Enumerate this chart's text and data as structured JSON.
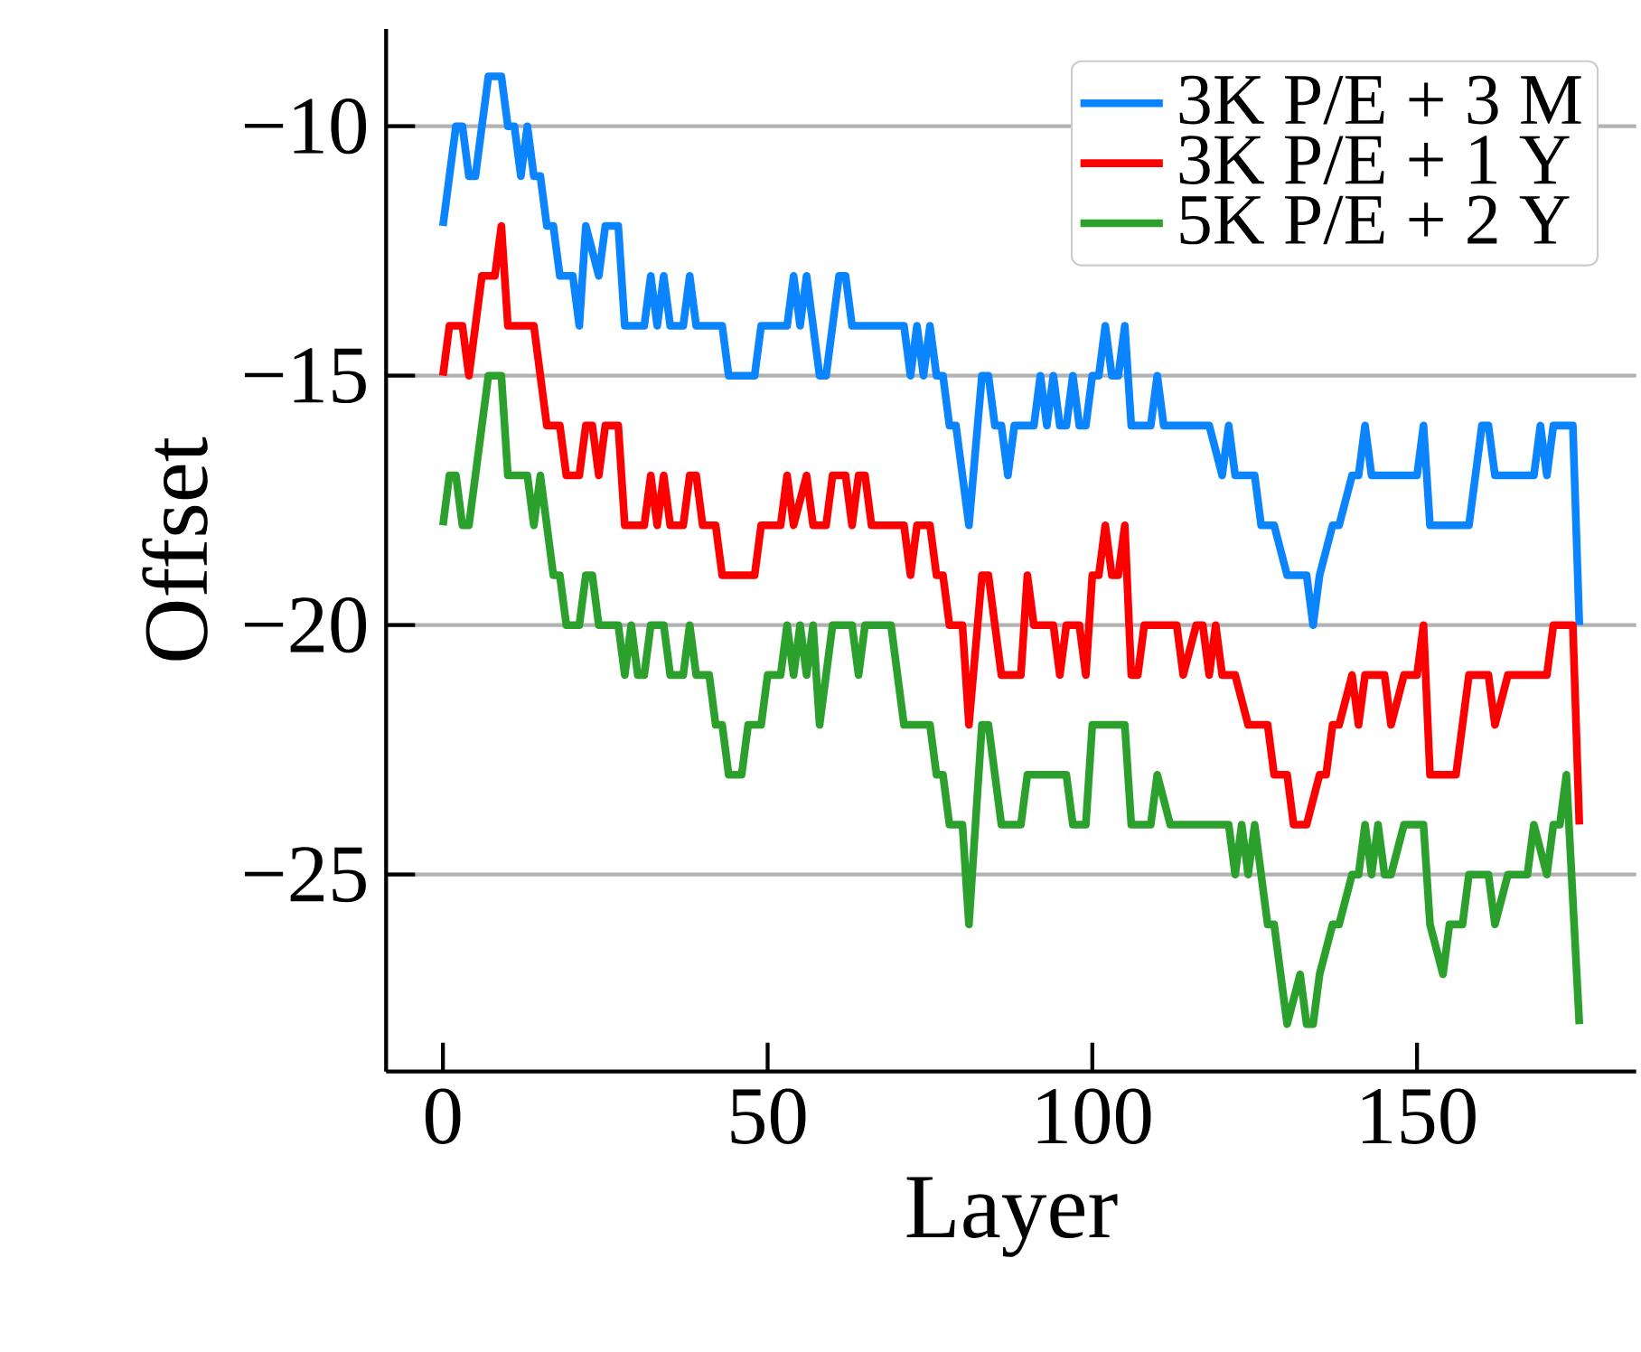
{
  "chart_data": {
    "type": "line",
    "xlabel": "Layer",
    "ylabel": "Offset",
    "xlim": [
      -8.75,
      183.75
    ],
    "ylim": [
      -28.95,
      -8.05
    ],
    "xticks": [
      0,
      50,
      100,
      150
    ],
    "yticks": [
      {
        "value": -10,
        "label": "−10"
      },
      {
        "value": -15,
        "label": "−15"
      },
      {
        "value": -20,
        "label": "−20"
      },
      {
        "value": -25,
        "label": "−25"
      }
    ],
    "grid": "y",
    "legend": "top right",
    "series": [
      {
        "name": "3K P/E + 3 M",
        "color": "#0a84ff",
        "x": [
          0,
          2,
          3,
          4,
          5,
          7,
          9,
          10,
          11,
          12,
          13,
          14,
          15,
          16,
          17,
          18,
          20,
          21,
          22,
          24,
          25,
          27,
          28,
          31,
          32,
          33,
          34,
          35,
          37,
          38,
          39,
          43,
          44,
          48,
          49,
          53,
          54,
          55,
          56,
          57,
          58,
          59,
          61,
          62,
          63,
          71,
          72,
          73,
          74,
          75,
          76,
          77,
          78,
          79,
          81,
          83,
          84,
          85,
          86,
          87,
          88,
          91,
          92,
          93,
          94,
          95,
          96,
          97,
          98,
          99,
          100,
          101,
          102,
          103,
          104,
          105,
          106,
          109,
          110,
          111,
          118,
          120,
          121,
          122,
          125,
          126,
          128,
          130,
          133,
          134,
          135,
          137,
          138,
          140,
          141,
          142,
          143,
          150,
          151,
          152,
          158,
          160,
          161,
          162,
          168,
          169,
          170,
          171,
          174,
          175
        ],
        "values": [
          -12,
          -10,
          -10,
          -11,
          -11,
          -9,
          -9,
          -10,
          -10,
          -11,
          -10,
          -11,
          -11,
          -12,
          -12,
          -13,
          -13,
          -14,
          -12,
          -13,
          -12,
          -12,
          -14,
          -14,
          -13,
          -14,
          -13,
          -14,
          -14,
          -13,
          -14,
          -14,
          -15,
          -15,
          -14,
          -14,
          -13,
          -14,
          -13,
          -14,
          -15,
          -15,
          -13,
          -13,
          -14,
          -14,
          -15,
          -14,
          -15,
          -14,
          -15,
          -15,
          -16,
          -16,
          -18,
          -15,
          -15,
          -16,
          -16,
          -17,
          -16,
          -16,
          -15,
          -16,
          -15,
          -16,
          -16,
          -15,
          -16,
          -16,
          -15,
          -15,
          -14,
          -15,
          -15,
          -14,
          -16,
          -16,
          -15,
          -16,
          -16,
          -17,
          -16,
          -17,
          -17,
          -18,
          -18,
          -19,
          -19,
          -20,
          -19,
          -18,
          -18,
          -17,
          -17,
          -16,
          -17,
          -17,
          -16,
          -18,
          -18,
          -16,
          -16,
          -17,
          -17,
          -16,
          -17,
          -16,
          -16,
          -20
        ]
      },
      {
        "name": "3K P/E + 1 Y",
        "color": "#ff0000",
        "x": [
          0,
          1,
          3,
          4,
          6,
          8,
          9,
          10,
          14,
          16,
          18,
          19,
          21,
          22,
          23,
          24,
          25,
          27,
          28,
          31,
          32,
          33,
          34,
          35,
          37,
          38,
          39,
          40,
          42,
          43,
          48,
          49,
          52,
          53,
          54,
          56,
          57,
          59,
          60,
          62,
          63,
          64,
          65,
          66,
          71,
          72,
          73,
          75,
          76,
          77,
          78,
          80,
          81,
          83,
          84,
          86,
          89,
          90,
          91,
          94,
          95,
          96,
          98,
          99,
          100,
          101,
          102,
          103,
          104,
          105,
          106,
          107,
          108,
          113,
          114,
          116,
          117,
          118,
          119,
          120,
          122,
          124,
          127,
          128,
          130,
          131,
          133,
          135,
          136,
          137,
          138,
          140,
          141,
          142,
          145,
          146,
          148,
          150,
          151,
          152,
          156,
          157,
          158,
          161,
          162,
          164,
          170,
          171,
          174,
          175
        ],
        "values": [
          -15,
          -14,
          -14,
          -15,
          -13,
          -13,
          -12,
          -14,
          -14,
          -16,
          -16,
          -17,
          -17,
          -16,
          -16,
          -17,
          -16,
          -16,
          -18,
          -18,
          -17,
          -18,
          -17,
          -18,
          -18,
          -17,
          -17,
          -18,
          -18,
          -19,
          -19,
          -18,
          -18,
          -17,
          -18,
          -17,
          -18,
          -18,
          -17,
          -17,
          -18,
          -17,
          -17,
          -18,
          -18,
          -19,
          -18,
          -18,
          -19,
          -19,
          -20,
          -20,
          -22,
          -19,
          -19,
          -21,
          -21,
          -19,
          -20,
          -20,
          -21,
          -20,
          -20,
          -21,
          -19,
          -19,
          -18,
          -19,
          -19,
          -18,
          -21,
          -21,
          -20,
          -20,
          -21,
          -20,
          -20,
          -21,
          -20,
          -21,
          -21,
          -22,
          -22,
          -23,
          -23,
          -24,
          -24,
          -23,
          -23,
          -22,
          -22,
          -21,
          -22,
          -21,
          -21,
          -22,
          -21,
          -21,
          -20,
          -23,
          -23,
          -22,
          -21,
          -21,
          -22,
          -21,
          -21,
          -20,
          -20,
          -24
        ]
      },
      {
        "name": "5K P/E + 2 Y",
        "color": "#2ca02c",
        "x": [
          0,
          1,
          2,
          3,
          4,
          7,
          9,
          10,
          13,
          14,
          15,
          17,
          18,
          19,
          21,
          22,
          23,
          24,
          27,
          28,
          29,
          30,
          31,
          32,
          34,
          35,
          37,
          38,
          39,
          41,
          42,
          43,
          44,
          46,
          47,
          49,
          50,
          52,
          53,
          54,
          55,
          56,
          57,
          58,
          60,
          63,
          64,
          65,
          69,
          71,
          75,
          76,
          77,
          78,
          80,
          81,
          83,
          84,
          86,
          89,
          90,
          96,
          97,
          99,
          100,
          105,
          106,
          109,
          110,
          112,
          121,
          122,
          123,
          124,
          125,
          126,
          127,
          128,
          130,
          132,
          133,
          134,
          135,
          137,
          138,
          140,
          141,
          142,
          143,
          144,
          145,
          146,
          148,
          151,
          152,
          154,
          155,
          157,
          158,
          161,
          162,
          164,
          167,
          168,
          170,
          171,
          172,
          173,
          175
        ],
        "values": [
          -18,
          -17,
          -17,
          -18,
          -18,
          -15,
          -15,
          -17,
          -17,
          -18,
          -17,
          -19,
          -19,
          -20,
          -20,
          -19,
          -19,
          -20,
          -20,
          -21,
          -20,
          -21,
          -21,
          -20,
          -20,
          -21,
          -21,
          -20,
          -21,
          -21,
          -22,
          -22,
          -23,
          -23,
          -22,
          -22,
          -21,
          -21,
          -20,
          -21,
          -20,
          -21,
          -20,
          -22,
          -20,
          -20,
          -21,
          -20,
          -20,
          -22,
          -22,
          -23,
          -23,
          -24,
          -24,
          -26,
          -22,
          -22,
          -24,
          -24,
          -23,
          -23,
          -24,
          -24,
          -22,
          -22,
          -24,
          -24,
          -23,
          -24,
          -24,
          -25,
          -24,
          -25,
          -24,
          -25,
          -26,
          -26,
          -28,
          -27,
          -28,
          -28,
          -27,
          -26,
          -26,
          -25,
          -25,
          -24,
          -25,
          -24,
          -25,
          -25,
          -24,
          -24,
          -26,
          -27,
          -26,
          -26,
          -25,
          -25,
          -26,
          -25,
          -25,
          -24,
          -25,
          -24,
          -24,
          -23,
          -28
        ]
      }
    ]
  }
}
